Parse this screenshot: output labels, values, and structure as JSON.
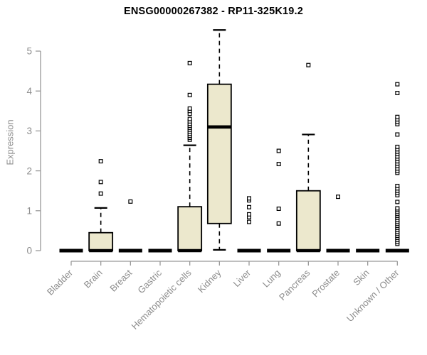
{
  "chart_data": {
    "type": "boxplot",
    "title": "ENSG00000267382 - RP11-325K19.2",
    "ylabel": "Expression",
    "xlabel": "",
    "ylim": [
      0,
      5.6
    ],
    "yticks": [
      0,
      1,
      2,
      3,
      4,
      5
    ],
    "grid": false,
    "legend": "none",
    "categories": [
      "Bladder",
      "Brain",
      "Breast",
      "Gastric",
      "Hematopoietic cells",
      "Kidney",
      "Liver",
      "Lung",
      "Pancreas",
      "Prostate",
      "Skin",
      "Unknown / Other"
    ],
    "colors": {
      "box_fill": "#ece8cd",
      "box_stroke": "#000000",
      "median": "#000000",
      "whisker": "#000000",
      "axis_line": "#999999",
      "tick_label": "#8c8c8c",
      "title": "#000000",
      "background": "#ffffff"
    },
    "series": [
      {
        "category": "Bladder",
        "q1": 0,
        "median": 0,
        "q3": 0,
        "whisker_low": 0,
        "whisker_high": 0,
        "outliers": []
      },
      {
        "category": "Brain",
        "q1": 0,
        "median": 0,
        "q3": 0.45,
        "whisker_low": 0,
        "whisker_high": 1.07,
        "outliers": [
          1.43,
          1.72,
          2.24
        ]
      },
      {
        "category": "Breast",
        "q1": 0,
        "median": 0,
        "q3": 0,
        "whisker_low": 0,
        "whisker_high": 0,
        "outliers": [
          1.23
        ]
      },
      {
        "category": "Gastric",
        "q1": 0,
        "median": 0,
        "q3": 0,
        "whisker_low": 0,
        "whisker_high": 0,
        "outliers": []
      },
      {
        "category": "Hematopoietic cells",
        "q1": 0,
        "median": 0,
        "q3": 1.1,
        "whisker_low": 0,
        "whisker_high": 2.64,
        "outliers": [
          2.78,
          2.83,
          2.88,
          2.93,
          2.98,
          3.03,
          3.08,
          3.13,
          3.18,
          3.24,
          3.3,
          3.43,
          3.5,
          3.56,
          3.9,
          4.7
        ]
      },
      {
        "category": "Kidney",
        "q1": 0.68,
        "median": 3.1,
        "q3": 4.17,
        "whisker_low": 0.02,
        "whisker_high": 5.53,
        "outliers": []
      },
      {
        "category": "Liver",
        "q1": 0,
        "median": 0,
        "q3": 0,
        "whisker_low": 0,
        "whisker_high": 0,
        "outliers": [
          0.72,
          0.84,
          0.91,
          1.09,
          1.26,
          1.31
        ]
      },
      {
        "category": "Lung",
        "q1": 0,
        "median": 0,
        "q3": 0,
        "whisker_low": 0,
        "whisker_high": 0,
        "outliers": [
          0.68,
          1.05,
          2.17,
          2.5
        ]
      },
      {
        "category": "Pancreas",
        "q1": 0,
        "median": 0,
        "q3": 1.5,
        "whisker_low": 0,
        "whisker_high": 2.91,
        "outliers": [
          4.65
        ]
      },
      {
        "category": "Prostate",
        "q1": 0,
        "median": 0,
        "q3": 0,
        "whisker_low": 0,
        "whisker_high": 0,
        "outliers": [
          1.35
        ]
      },
      {
        "category": "Skin",
        "q1": 0,
        "median": 0,
        "q3": 0,
        "whisker_low": 0,
        "whisker_high": 0,
        "outliers": []
      },
      {
        "category": "Unknown / Other",
        "q1": 0,
        "median": 0,
        "q3": 0,
        "whisker_low": 0,
        "whisker_high": 0,
        "outliers": [
          0.17,
          0.22,
          0.27,
          0.32,
          0.37,
          0.42,
          0.47,
          0.52,
          0.57,
          0.62,
          0.67,
          0.72,
          0.77,
          0.82,
          0.87,
          0.92,
          0.97,
          1.02,
          1.06,
          1.22,
          1.39,
          1.45,
          1.5,
          1.56,
          1.62,
          1.95,
          2.0,
          2.06,
          2.12,
          2.18,
          2.24,
          2.3,
          2.36,
          2.42,
          2.48,
          2.54,
          2.6,
          2.91,
          3.17,
          3.23,
          3.29,
          3.35,
          3.95,
          4.17
        ]
      }
    ]
  }
}
